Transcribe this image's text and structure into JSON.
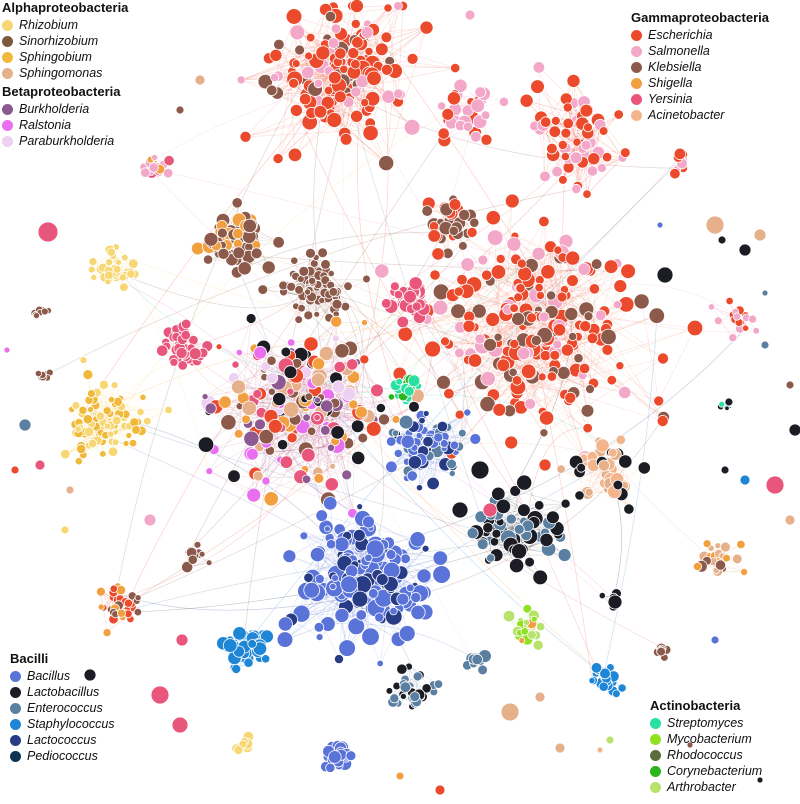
{
  "legend_groups": [
    {
      "id": "alpha",
      "title": "Alphaproteobacteria",
      "items": [
        {
          "label": "Rhizobium",
          "color": "#f7d774"
        },
        {
          "label": "Sinorhizobium",
          "color": "#7b5a3c"
        },
        {
          "label": "Sphingobium",
          "color": "#f0b93a"
        },
        {
          "label": "Sphingomonas",
          "color": "#e6b08a"
        }
      ]
    },
    {
      "id": "beta",
      "title": "Betaproteobacteria",
      "items": [
        {
          "label": "Burkholderia",
          "color": "#8c5a91"
        },
        {
          "label": "Ralstonia",
          "color": "#ea6ff0"
        },
        {
          "label": "Paraburkholderia",
          "color": "#eed0f2"
        }
      ]
    },
    {
      "id": "gamma",
      "title": "Gammaproteobacteria",
      "items": [
        {
          "label": "Escherichia",
          "color": "#ec4a2c"
        },
        {
          "label": "Salmonella",
          "color": "#f3a7c9"
        },
        {
          "label": "Klebsiella",
          "color": "#8c5a4a"
        },
        {
          "label": "Shigella",
          "color": "#f2a03f"
        },
        {
          "label": "Yersinia",
          "color": "#e8577b"
        },
        {
          "label": "Acinetobacter",
          "color": "#f4b48c"
        }
      ]
    },
    {
      "id": "bacilli",
      "title": "Bacilli",
      "items": [
        {
          "label": "Bacillus",
          "color": "#5a73d8"
        },
        {
          "label": "Lactobacillus",
          "color": "#1c1c24"
        },
        {
          "label": "Enterococcus",
          "color": "#5a7fa0"
        },
        {
          "label": "Staphylococcus",
          "color": "#1f86d6"
        },
        {
          "label": "Lactococcus",
          "color": "#273c85"
        },
        {
          "label": "Pediococcus",
          "color": "#0d3350"
        }
      ]
    },
    {
      "id": "actino",
      "title": "Actinobacteria",
      "items": [
        {
          "label": "Streptomyces",
          "color": "#28e0a0"
        },
        {
          "label": "Mycobacterium",
          "color": "#8fe21f"
        },
        {
          "label": "Rhodococcus",
          "color": "#5e6b3c"
        },
        {
          "label": "Corynebacterium",
          "color": "#2cb51a"
        },
        {
          "label": "Arthrobacter",
          "color": "#b7e36c"
        }
      ]
    }
  ]
}
